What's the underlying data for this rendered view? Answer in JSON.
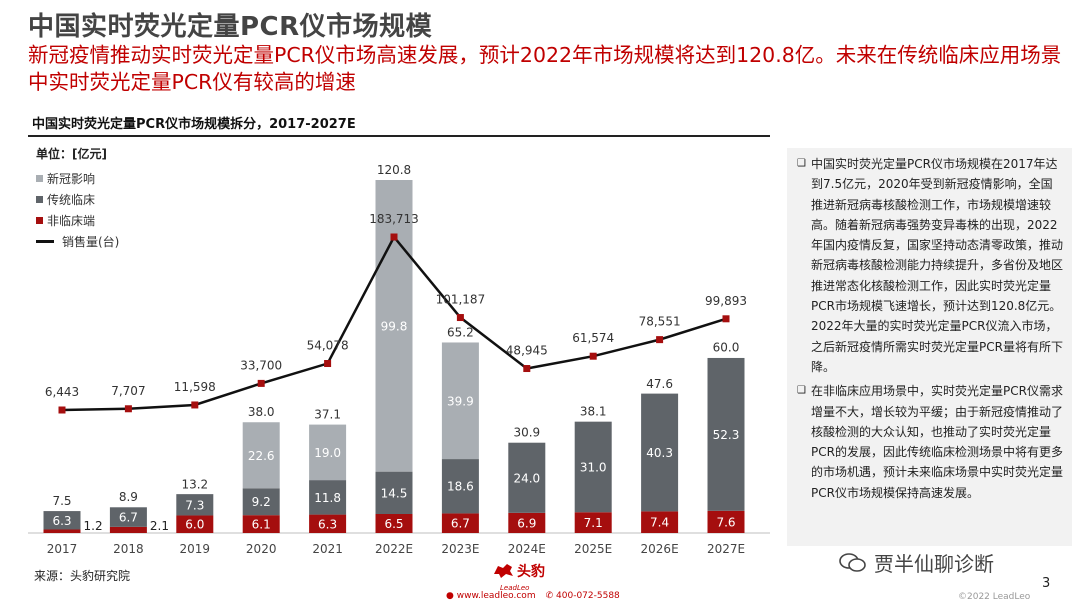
{
  "header": {
    "title": "中国实时荧光定量PCR仪市场规模",
    "subtitle": "新冠疫情推动实时荧光定量PCR仪市场高速发展，预计2022年市场规模将达到120.8亿。未来在传统临床应用场景中实时荧光定量PCR仪有较高的增速"
  },
  "chart_data": {
    "type": "bar",
    "stacked": true,
    "title": "中国实时荧光定量PCR仪市场规模拆分，2017-2027E",
    "unit_label": "单位：[亿元]",
    "categories": [
      "2017",
      "2018",
      "2019",
      "2020",
      "2021",
      "2022E",
      "2023E",
      "2024E",
      "2025E",
      "2026E",
      "2027E"
    ],
    "series": [
      {
        "name": "非临床端",
        "color": "#a50e0e",
        "values": [
          1.2,
          2.1,
          6.0,
          6.1,
          6.3,
          6.5,
          6.7,
          6.9,
          7.1,
          7.4,
          7.6
        ],
        "labels": [
          "1.2",
          "2.1",
          "6.0",
          "6.1",
          "6.3",
          "6.5",
          "6.7",
          "6.9",
          "7.1",
          "7.4",
          "7.6"
        ]
      },
      {
        "name": "传统临床",
        "color": "#5f6469",
        "values": [
          6.3,
          6.7,
          7.3,
          9.2,
          11.8,
          14.5,
          18.6,
          24.0,
          31.0,
          40.3,
          52.3
        ],
        "labels": [
          "6.3",
          "6.7",
          "7.3",
          "9.2",
          "11.8",
          "14.5",
          "18.6",
          "24.0",
          "31.0",
          "40.3",
          "52.3"
        ]
      },
      {
        "name": "新冠影响",
        "color": "#a9aeb3",
        "values": [
          0,
          0,
          0,
          22.6,
          19.0,
          99.8,
          39.9,
          0,
          0,
          0,
          0
        ],
        "labels": [
          "",
          "",
          "",
          "22.6",
          "19.0",
          "99.8",
          "39.9",
          "",
          "",
          "",
          ""
        ]
      }
    ],
    "totals": [
      7.5,
      8.9,
      13.2,
      38.0,
      37.1,
      120.8,
      65.2,
      30.9,
      38.1,
      47.6,
      60.0
    ],
    "total_labels": [
      "7.5",
      "8.9",
      "13.2",
      "38.0",
      "37.1",
      "120.8",
      "65.2",
      "30.9",
      "38.1",
      "47.6",
      "60.0"
    ],
    "line": {
      "name": "销售量(台)",
      "color": "#111111",
      "marker_color": "#a50e0e",
      "values": [
        6443,
        7707,
        11598,
        33700,
        54078,
        183713,
        101187,
        48945,
        61574,
        78551,
        99893
      ],
      "labels": [
        "6,443",
        "7,707",
        "11,598",
        "33,700",
        "54,078",
        "183,713",
        "101,187",
        "48,945",
        "61,574",
        "78,551",
        "99,893"
      ]
    },
    "legend": [
      "新冠影响",
      "传统临床",
      "非临床端",
      "销售量(台)"
    ],
    "legend_position": "top-left",
    "ylim_bar": [
      0,
      125
    ],
    "ylim_line": [
      0,
      200000
    ],
    "grid": false
  },
  "panel": {
    "bullet_mark": "❑",
    "bullets": [
      "中国实时荧光定量PCR仪市场规模在2017年达到7.5亿元，2020年受到新冠疫情影响，全国推进新冠病毒核酸检测工作，市场规模增速较高。随着新冠病毒强势变异毒株的出现，2022年国内疫情反复，国家坚持动态清零政策，推动新冠病毒核酸检测能力持续提升，多省份及地区推进常态化核酸检测工作，因此实时荧光定量PCR市场规模飞速增长，预计达到120.8亿元。2022年大量的实时荧光定量PCR仪流入市场，之后新冠疫情所需实时荧光定量PCR量将有所下降。",
      "在非临床应用场景中，实时荧光定量PCR仪需求增量不大，增长较为平缓；由于新冠疫情推动了核酸检测的大众认知，也推动了实时荧光定量PCR的发展，因此传统临床检测场景中将有更多的市场机遇，预计未来临床场景中实时荧光定量PCR仪市场规模保持高速发展。"
    ]
  },
  "footer": {
    "source": "来源：头豹研究院",
    "logo_name": "头豹",
    "logo_sub": "LeadLeo",
    "website": "www.leadleo.com",
    "phone": "400-072-5588",
    "page_number": "3",
    "copyright": "©2022 LeadLeo",
    "watermark": "贾半仙聊诊断"
  }
}
